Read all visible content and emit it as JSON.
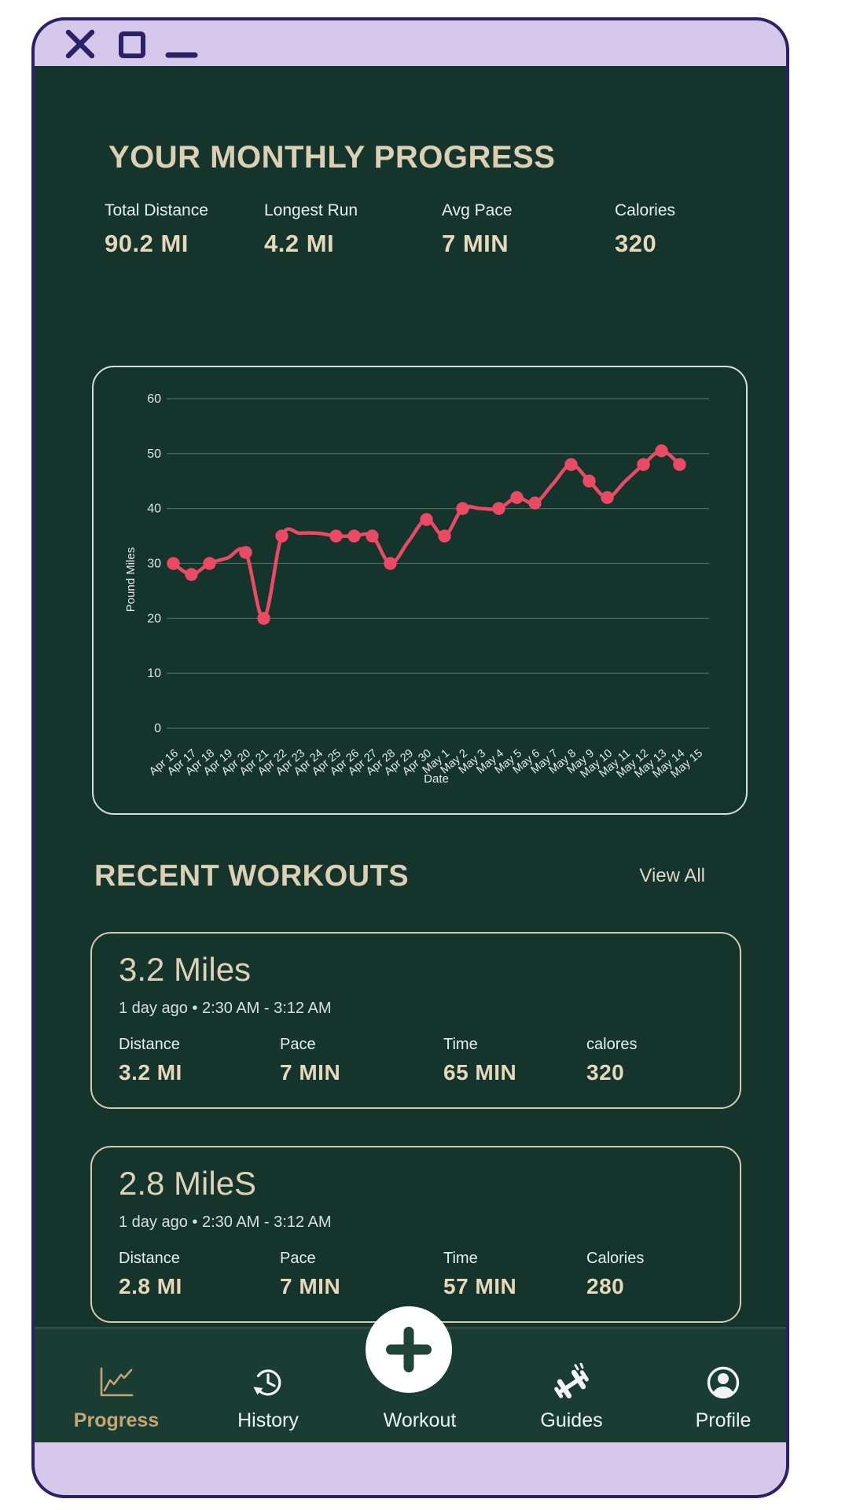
{
  "window": {
    "controls": [
      {
        "name": "close"
      },
      {
        "name": "maximize"
      },
      {
        "name": "minimize"
      }
    ]
  },
  "progress_header": {
    "title": "YOUR MONTHLY PROGRESS"
  },
  "summary_stats": [
    {
      "label": "Total Distance",
      "value": "90.2 MI"
    },
    {
      "label": "Longest Run",
      "value": "4.2 MI"
    },
    {
      "label": "Avg Pace",
      "value": "7 MIN"
    },
    {
      "label": "Calories",
      "value": "320"
    }
  ],
  "chart_data": {
    "type": "line",
    "xlabel": "Date",
    "ylabel": "Pound Miles",
    "ylim": [
      0,
      65
    ],
    "yticks": [
      0,
      10,
      20,
      30,
      40,
      50,
      60
    ],
    "grid": true,
    "line_color": "#ea4a63",
    "categories": [
      "Apr 16",
      "Apr 17",
      "Apr 18",
      "Apr 19",
      "Apr 20",
      "Apr 21",
      "Apr 22",
      "Apr 23",
      "Apr 24",
      "Apr 25",
      "Apr 26",
      "Apr 27",
      "Apr 28",
      "Apr 29",
      "Apr 30",
      "May 1",
      "May 2",
      "May 3",
      "May 4",
      "May 5",
      "May 6",
      "May 7",
      "May 8",
      "May 9",
      "May 10",
      "May 11",
      "May 12",
      "May 13",
      "May 14",
      "May 15"
    ],
    "series": [
      {
        "name": "Pound Miles",
        "values": [
          30,
          28,
          30,
          31,
          32,
          20,
          35,
          35.5,
          35.5,
          35,
          35,
          35,
          30,
          34,
          38,
          35,
          40,
          40,
          40,
          42,
          41,
          44.5,
          48,
          45,
          42,
          45,
          48,
          50.5,
          48,
          null
        ],
        "markers": [
          true,
          true,
          true,
          false,
          true,
          true,
          true,
          false,
          false,
          true,
          true,
          true,
          true,
          false,
          true,
          true,
          true,
          false,
          true,
          true,
          true,
          false,
          true,
          true,
          true,
          false,
          true,
          true,
          true,
          false
        ]
      }
    ]
  },
  "recent_workouts": {
    "title": "RECENT WORKOUTS",
    "view_all_label": "View All",
    "workouts": [
      {
        "title": "3.2 Miles",
        "meta": "1 day ago • 2:30 AM - 3:12 AM",
        "stats": [
          {
            "label": "Distance",
            "value": "3.2 MI"
          },
          {
            "label": "Pace",
            "value": "7 MIN"
          },
          {
            "label": "Time",
            "value": "65 MIN"
          },
          {
            "label": "calores",
            "value": "320"
          }
        ]
      },
      {
        "title": "2.8 MileS",
        "meta": "1 day ago • 2:30 AM - 3:12 AM",
        "stats": [
          {
            "label": "Distance",
            "value": "2.8 MI"
          },
          {
            "label": "Pace",
            "value": "7 MIN"
          },
          {
            "label": "Time",
            "value": "57 MIN"
          },
          {
            "label": "Calories",
            "value": "280"
          }
        ]
      }
    ]
  },
  "bottom_nav": {
    "items": [
      {
        "label": "Progress",
        "icon": "line-chart-icon",
        "active": true
      },
      {
        "label": "History",
        "icon": "history-clock-icon",
        "active": false
      },
      {
        "label": "Workout",
        "icon": "plus-icon",
        "active": false
      },
      {
        "label": "Guides",
        "icon": "dumbbell-icon",
        "active": false
      },
      {
        "label": "Profile",
        "icon": "person-circle-icon",
        "active": false
      }
    ]
  },
  "colors": {
    "background": "#15342b",
    "nav_background": "#1a3d33",
    "accent_pink": "#ea4a63",
    "active_tab_tan": "#c5a576",
    "cream": "#ddd0b4",
    "lavender": "#d5c8ea",
    "navy_border": "#2b2166"
  }
}
